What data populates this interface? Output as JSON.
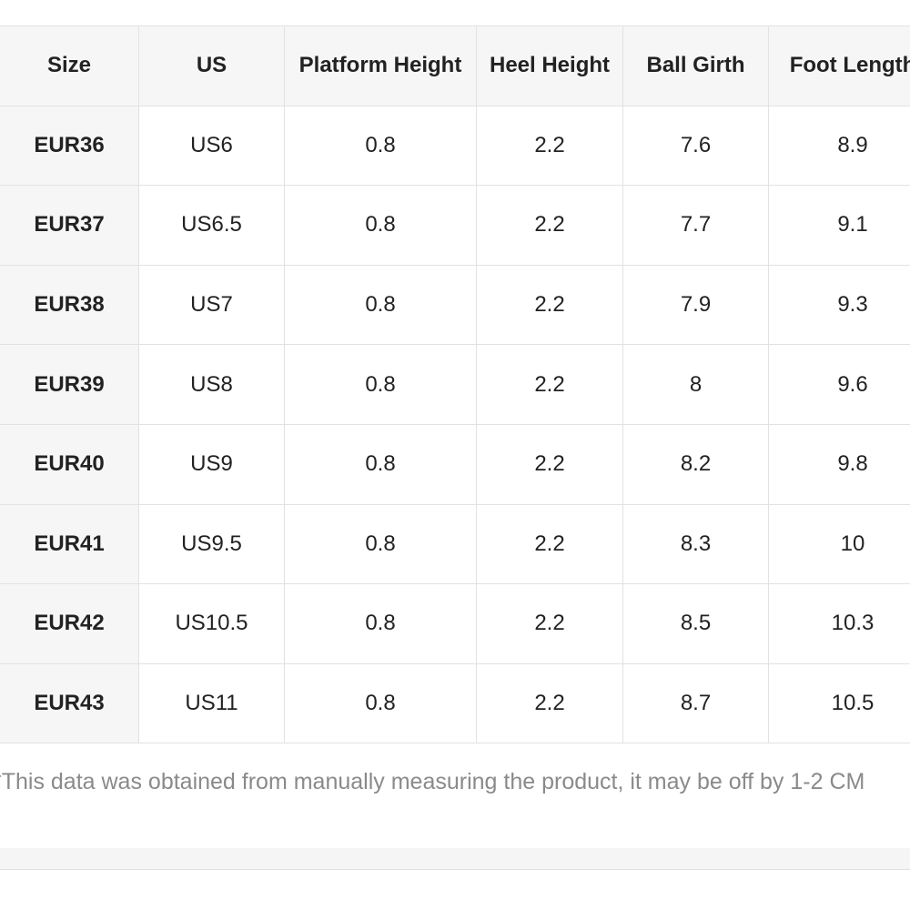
{
  "table": {
    "header": [
      "Size",
      "US",
      "Platform Height",
      "Heel Height",
      "Ball Girth",
      "Foot Length"
    ],
    "rows": [
      [
        "EUR36",
        "US6",
        0.8,
        2.2,
        7.6,
        8.9
      ],
      [
        "EUR37",
        "US6.5",
        0.8,
        2.2,
        7.7,
        9.1
      ],
      [
        "EUR38",
        "US7",
        0.8,
        2.2,
        7.9,
        9.3
      ],
      [
        "EUR39",
        "US8",
        0.8,
        2.2,
        8,
        9.6
      ],
      [
        "EUR40",
        "US9",
        0.8,
        2.2,
        8.2,
        9.8
      ],
      [
        "EUR41",
        "US9.5",
        0.8,
        2.2,
        8.3,
        10
      ],
      [
        "EUR42",
        "US10.5",
        0.8,
        2.2,
        8.5,
        10.3
      ],
      [
        "EUR43",
        "US11",
        0.8,
        2.2,
        8.7,
        10.5
      ]
    ]
  },
  "note": "*This data was obtained from manually measuring the product, it may be off by 1-2 CM"
}
